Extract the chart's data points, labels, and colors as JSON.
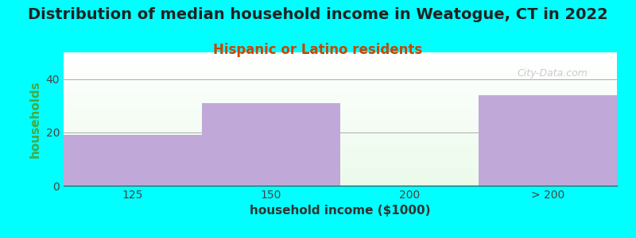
{
  "title": "Distribution of median household income in Weatogue, CT in 2022",
  "subtitle": "Hispanic or Latino residents",
  "xlabel": "household income ($1000)",
  "ylabel": "households",
  "background_color": "#00FFFF",
  "bar_color": "#c0a8d8",
  "categories": [
    "125",
    "150",
    "200",
    "> 200"
  ],
  "values": [
    19,
    31,
    0,
    34
  ],
  "bar_positions": [
    0,
    1,
    2,
    3
  ],
  "bar_width": 1.0,
  "ylim": [
    0,
    50
  ],
  "yticks": [
    0,
    20,
    40
  ],
  "title_fontsize": 14,
  "subtitle_fontsize": 12,
  "subtitle_color": "#cc4400",
  "axis_label_fontsize": 11,
  "tick_fontsize": 10,
  "title_color": "#222222",
  "ylabel_color": "#44aa44",
  "watermark": "City-Data.com",
  "watermark_color": "#aaaaaa"
}
